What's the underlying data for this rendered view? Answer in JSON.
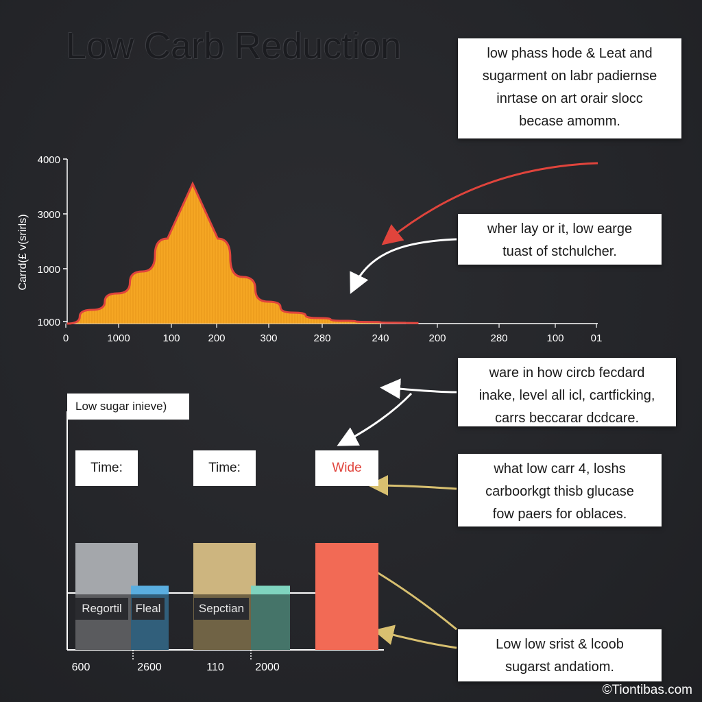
{
  "title": "Low Carb Reduction",
  "notes": {
    "top": [
      "low phass hode & Leat and",
      "sugarment on labr padiernse",
      "inrtase on art orair slocc",
      "becase amomm."
    ],
    "middle": [
      "wher lay or it, low earge",
      "tuast of stchulcher."
    ],
    "lower": [
      "ware in how circb fecdard",
      "inake, level all icl, cartficking,",
      "carrs beccarar dcdcare."
    ],
    "glucose": [
      "what low carr 4, loshs",
      "carboorkgt thisb glucase",
      "fow paers for oblaces."
    ],
    "bottom": [
      "Low low srist & lcoob",
      "sugarst andatiom."
    ]
  },
  "chart_data": [
    {
      "type": "area",
      "ylabel": "Carrd(£ v(srirls)",
      "y_tick_labels": [
        "4000",
        "3000",
        "1000",
        "1000"
      ],
      "x_tick_labels": [
        "0",
        "1000",
        "100",
        "200",
        "300",
        "280",
        "240",
        "200",
        "280",
        "100",
        "01"
      ],
      "x": [
        0,
        0.5,
        1,
        1.5,
        2,
        2.5,
        3,
        3.5,
        4,
        4.5,
        5,
        5.5,
        6,
        6.5,
        7
      ],
      "y": [
        1000,
        1250,
        1550,
        1950,
        2550,
        3550,
        2550,
        1850,
        1400,
        1200,
        1100,
        1050,
        1030,
        1015,
        1010
      ],
      "fill_color": "#f5a623",
      "line_color": "#e0443c",
      "grid": false
    },
    {
      "type": "bar",
      "legend_label": "Low sugar inieve)",
      "groups": [
        {
          "header": "Time:",
          "bars": [
            {
              "value": 0.65,
              "color": "#a4a7ab"
            },
            {
              "value": 0.39,
              "color": "#5aaee0"
            }
          ],
          "tags": [
            "Regortil",
            "Fleal"
          ],
          "x_tick_labels": [
            "600",
            "2600"
          ]
        },
        {
          "header": "Time:",
          "bars": [
            {
              "value": 0.65,
              "color": "#cdb57f"
            },
            {
              "value": 0.39,
              "color": "#7fd4bf"
            }
          ],
          "tags": [
            "Sepctian"
          ],
          "x_tick_labels": [
            "110",
            "2000"
          ]
        },
        {
          "header": "Wide",
          "header_color": "#e0443c",
          "bars": [
            {
              "value": 0.65,
              "color": "#f26a55"
            }
          ],
          "tags": [],
          "x_tick_labels": []
        }
      ]
    }
  ],
  "colors": {
    "arrow_red": "#e0443c",
    "arrow_white": "#ffffff",
    "arrow_gold": "#d8c070"
  },
  "copyright": "©Tiontibas.com"
}
